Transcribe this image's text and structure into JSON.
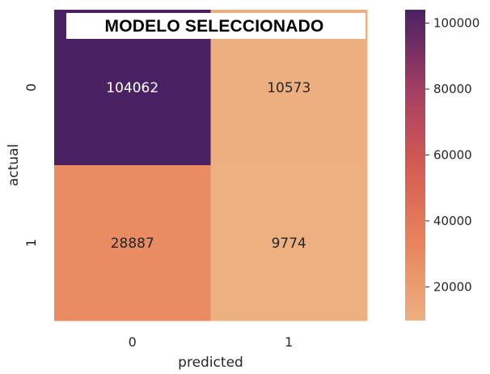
{
  "chart_data": {
    "type": "heatmap",
    "title": "MODELO SELECCIONADO",
    "xlabel": "predicted",
    "ylabel": "actual",
    "x_categories": [
      "0",
      "1"
    ],
    "y_categories": [
      "0",
      "1"
    ],
    "values": [
      [
        104062,
        10573
      ],
      [
        28887,
        9774
      ]
    ],
    "cell_labels": [
      [
        "104062",
        "10573"
      ],
      [
        "28887",
        "9774"
      ]
    ],
    "colormap": "flare",
    "colorbar": {
      "range": [
        9774,
        104062
      ],
      "ticks": [
        20000,
        40000,
        60000,
        80000,
        100000
      ],
      "tick_labels": [
        "20000",
        "40000",
        "60000",
        "80000",
        "100000"
      ]
    },
    "colors": {
      "cell_dark_text": "#262626",
      "cell_light_text": "#ffffff",
      "title_box_bg": "#ffffff"
    }
  }
}
